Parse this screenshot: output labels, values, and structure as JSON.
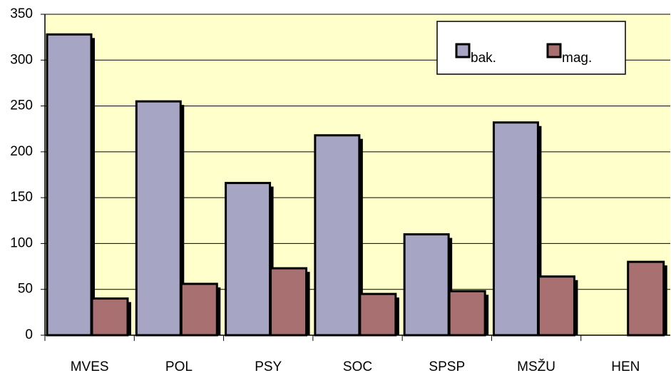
{
  "chart_data": {
    "type": "bar",
    "categories": [
      "MVES",
      "POL",
      "PSY",
      "SOC",
      "SPSP",
      "MSŽU",
      "HEN"
    ],
    "series": [
      {
        "name": "bak.",
        "color": "#a6a6c4",
        "values": [
          328,
          255,
          166,
          218,
          110,
          232,
          0
        ]
      },
      {
        "name": "mag.",
        "color": "#a87070",
        "values": [
          40,
          56,
          73,
          45,
          48,
          64,
          80
        ]
      }
    ],
    "ylim": [
      0,
      350
    ],
    "yticks": [
      0,
      50,
      100,
      150,
      200,
      250,
      300,
      350
    ],
    "grid": true,
    "legend": "top-right",
    "background": "#ffffcc"
  }
}
